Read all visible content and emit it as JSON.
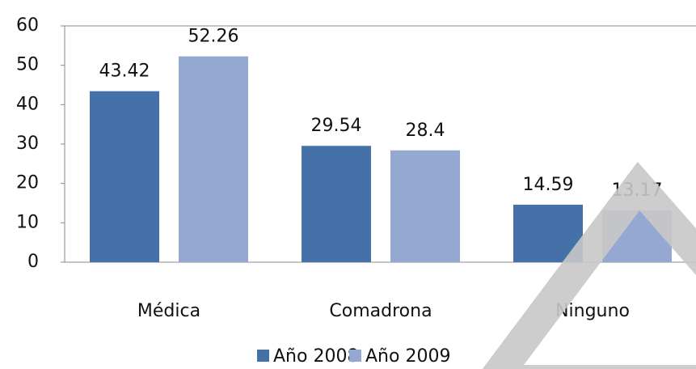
{
  "chart_data": {
    "type": "bar",
    "categories": [
      "Médica",
      "Comadrona",
      "Ninguno"
    ],
    "series": [
      {
        "name": "Año 2008",
        "color": "#4472a8",
        "values": [
          43.42,
          29.54,
          14.59
        ]
      },
      {
        "name": "Año 2009",
        "color": "#94a8d2",
        "values": [
          52.26,
          28.4,
          13.17
        ]
      }
    ],
    "ylim": [
      0,
      60
    ],
    "yticks": [
      0,
      10,
      20,
      30,
      40,
      50,
      60
    ],
    "grid": false
  }
}
